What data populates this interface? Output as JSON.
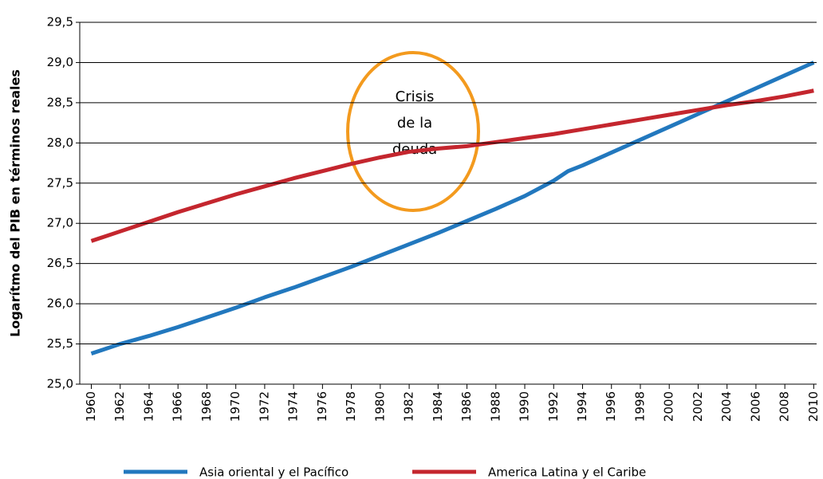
{
  "chart_data": {
    "type": "line",
    "ylabel": "Logarítmo del PIB en términos reales",
    "annotation": [
      "Crisis",
      "de la",
      "deuda"
    ],
    "x": [
      1960,
      1962,
      1964,
      1966,
      1968,
      1970,
      1972,
      1974,
      1976,
      1978,
      1980,
      1982,
      1984,
      1986,
      1988,
      1990,
      1992,
      1993,
      1994,
      1996,
      1998,
      2000,
      2002,
      2004,
      2006,
      2008,
      2010
    ],
    "series": [
      {
        "name": "Asia oriental y el Pacífico",
        "color": "#2278be",
        "values": [
          25.38,
          25.5,
          25.6,
          25.71,
          25.83,
          25.95,
          26.08,
          26.2,
          26.33,
          26.46,
          26.6,
          26.74,
          26.88,
          27.03,
          27.18,
          27.34,
          27.53,
          27.65,
          27.72,
          27.88,
          28.04,
          28.2,
          28.36,
          28.52,
          28.68,
          28.84,
          29.0
        ]
      },
      {
        "name": "America Latina y el Caribe",
        "color": "#c4262e",
        "values": [
          26.78,
          26.9,
          27.02,
          27.14,
          27.25,
          27.36,
          27.46,
          27.56,
          27.65,
          27.74,
          27.82,
          27.89,
          27.93,
          27.96,
          28.01,
          28.06,
          28.11,
          28.14,
          28.17,
          28.23,
          28.29,
          28.35,
          28.41,
          28.47,
          28.52,
          28.58,
          28.65
        ]
      }
    ],
    "xlim": [
      1959.2,
      2010.2
    ],
    "xticks": [
      1960,
      1962,
      1964,
      1966,
      1968,
      1970,
      1972,
      1974,
      1976,
      1978,
      1980,
      1982,
      1984,
      1986,
      1988,
      1990,
      1992,
      1994,
      1996,
      1998,
      2000,
      2002,
      2004,
      2006,
      2008,
      2010
    ],
    "ylim": [
      25.0,
      29.5
    ],
    "yticks": [
      {
        "value": 25.0,
        "label": "25,0"
      },
      {
        "value": 25.5,
        "label": "25,5"
      },
      {
        "value": 26.0,
        "label": "26,0"
      },
      {
        "value": 26.5,
        "label": "26,5"
      },
      {
        "value": 27.0,
        "label": "27,0"
      },
      {
        "value": 27.5,
        "label": "27,5"
      },
      {
        "value": 28.0,
        "label": "28,0"
      },
      {
        "value": 28.5,
        "label": "28,5"
      },
      {
        "value": 29.0,
        "label": "29,0"
      },
      {
        "value": 29.5,
        "label": "29,5"
      }
    ],
    "grid": true,
    "legend": "bottom"
  }
}
